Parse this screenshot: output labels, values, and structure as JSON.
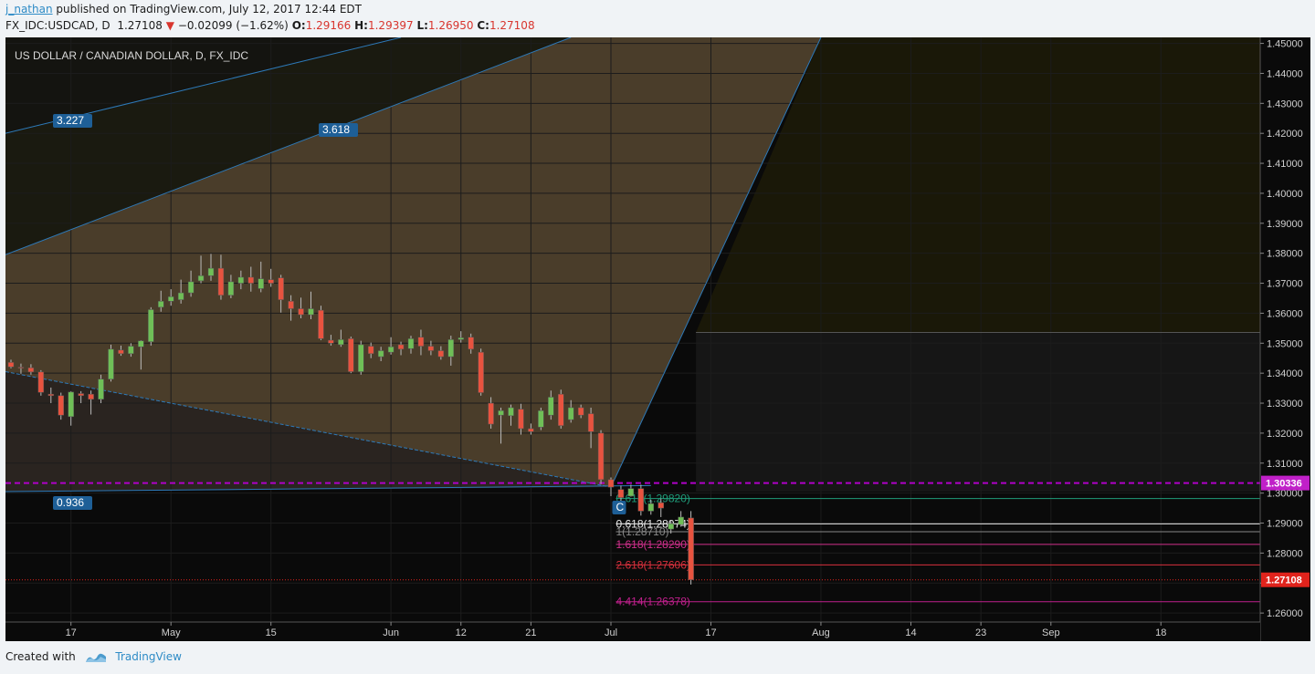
{
  "header": {
    "author": "j_nathan",
    "published_text": "published on TradingView.com, July 12, 2017 12:44 EDT",
    "symbol": "FX_IDC:USDCAD, D",
    "last": "1.27108",
    "change": "−0.02099 (−1.62%)",
    "o_label": "O:",
    "o_value": "1.29166",
    "h_label": "H:",
    "h_value": "1.29397",
    "l_label": "L:",
    "l_value": "1.26950",
    "c_label": "C:",
    "c_value": "1.27108"
  },
  "footer": {
    "created_with": "Created with",
    "brand": "TradingView"
  },
  "colors": {
    "up": "#6fbf57",
    "down": "#e8533f",
    "fib_fill": "#4a3d2a",
    "pitch_line": "#2d79b8",
    "dashed_magenta": "#b000c8",
    "price_tag": "#e0231c"
  },
  "chart_data": {
    "type": "candlestick",
    "title": "US DOLLAR / CANADIAN DOLLAR, D, FX_IDC",
    "ylim": [
      1.257,
      1.452
    ],
    "y_ticks": [
      "1.45000",
      "1.44000",
      "1.43000",
      "1.42000",
      "1.41000",
      "1.40000",
      "1.39000",
      "1.38000",
      "1.37000",
      "1.36000",
      "1.35000",
      "1.34000",
      "1.33000",
      "1.32000",
      "1.31000",
      "1.30000",
      "1.29000",
      "1.28000",
      "1.27000",
      "1.26000"
    ],
    "x_ticks": [
      {
        "i": 6,
        "label": "17"
      },
      {
        "i": 16,
        "label": "May"
      },
      {
        "i": 26,
        "label": "15"
      },
      {
        "i": 38,
        "label": "Jun"
      },
      {
        "i": 45,
        "label": "12"
      },
      {
        "i": 52,
        "label": "21"
      },
      {
        "i": 60,
        "label": "Jul"
      },
      {
        "i": 70,
        "label": "17"
      },
      {
        "i": 81,
        "label": "Aug"
      },
      {
        "i": 90,
        "label": "14"
      },
      {
        "i": 97,
        "label": "23"
      },
      {
        "i": 104,
        "label": "Sep"
      },
      {
        "i": 115,
        "label": "18"
      }
    ],
    "candles": [
      [
        1.3436,
        1.3445,
        1.3416,
        1.3421
      ],
      [
        1.342,
        1.3432,
        1.3398,
        1.3418
      ],
      [
        1.3418,
        1.343,
        1.3395,
        1.3404
      ],
      [
        1.3404,
        1.341,
        1.3325,
        1.3336
      ],
      [
        1.333,
        1.3352,
        1.33,
        1.3325
      ],
      [
        1.3325,
        1.3335,
        1.3245,
        1.326
      ],
      [
        1.3255,
        1.334,
        1.3225,
        1.3337
      ],
      [
        1.3332,
        1.334,
        1.33,
        1.3325
      ],
      [
        1.333,
        1.3342,
        1.3262,
        1.3313
      ],
      [
        1.3313,
        1.3395,
        1.33,
        1.338
      ],
      [
        1.338,
        1.3495,
        1.3372,
        1.348
      ],
      [
        1.3477,
        1.3492,
        1.3458,
        1.3465
      ],
      [
        1.3465,
        1.35,
        1.3455,
        1.349
      ],
      [
        1.3488,
        1.351,
        1.3412,
        1.3508
      ],
      [
        1.3505,
        1.362,
        1.3492,
        1.3612
      ],
      [
        1.362,
        1.3675,
        1.3605,
        1.364
      ],
      [
        1.364,
        1.368,
        1.3625,
        1.3655
      ],
      [
        1.3645,
        1.3712,
        1.3632,
        1.3668
      ],
      [
        1.3668,
        1.3742,
        1.3655,
        1.3705
      ],
      [
        1.3708,
        1.3792,
        1.37,
        1.3725
      ],
      [
        1.3725,
        1.3798,
        1.3708,
        1.375
      ],
      [
        1.375,
        1.3795,
        1.3645,
        1.366
      ],
      [
        1.366,
        1.3728,
        1.365,
        1.3705
      ],
      [
        1.37,
        1.3742,
        1.368,
        1.372
      ],
      [
        1.372,
        1.3755,
        1.3672,
        1.37
      ],
      [
        1.3682,
        1.3772,
        1.367,
        1.3715
      ],
      [
        1.3712,
        1.3748,
        1.3688,
        1.37
      ],
      [
        1.3718,
        1.3728,
        1.3602,
        1.3645
      ],
      [
        1.364,
        1.366,
        1.3575,
        1.3615
      ],
      [
        1.3615,
        1.3652,
        1.3583,
        1.3595
      ],
      [
        1.3595,
        1.3672,
        1.358,
        1.3615
      ],
      [
        1.361,
        1.3625,
        1.351,
        1.3515
      ],
      [
        1.351,
        1.3528,
        1.3492,
        1.35
      ],
      [
        1.3495,
        1.3545,
        1.3488,
        1.3512
      ],
      [
        1.3515,
        1.3522,
        1.34,
        1.3405
      ],
      [
        1.3405,
        1.3508,
        1.3395,
        1.3495
      ],
      [
        1.349,
        1.3502,
        1.345,
        1.3465
      ],
      [
        1.3455,
        1.3488,
        1.344,
        1.3475
      ],
      [
        1.347,
        1.352,
        1.3462,
        1.3488
      ],
      [
        1.3495,
        1.3505,
        1.346,
        1.348
      ],
      [
        1.3482,
        1.3525,
        1.3465,
        1.3515
      ],
      [
        1.352,
        1.3545,
        1.346,
        1.349
      ],
      [
        1.349,
        1.3508,
        1.346,
        1.3475
      ],
      [
        1.3475,
        1.349,
        1.3445,
        1.3455
      ],
      [
        1.3455,
        1.3525,
        1.3425,
        1.3512
      ],
      [
        1.3512,
        1.354,
        1.3502,
        1.3518
      ],
      [
        1.352,
        1.3532,
        1.3465,
        1.348
      ],
      [
        1.347,
        1.3482,
        1.3325,
        1.3335
      ],
      [
        1.33,
        1.332,
        1.3215,
        1.323
      ],
      [
        1.326,
        1.3285,
        1.3165,
        1.3275
      ],
      [
        1.3258,
        1.3295,
        1.3225,
        1.3285
      ],
      [
        1.328,
        1.3298,
        1.3195,
        1.3215
      ],
      [
        1.3215,
        1.3232,
        1.3195,
        1.3205
      ],
      [
        1.322,
        1.3285,
        1.321,
        1.3275
      ],
      [
        1.326,
        1.3342,
        1.3245,
        1.332
      ],
      [
        1.333,
        1.3345,
        1.3215,
        1.3225
      ],
      [
        1.3245,
        1.331,
        1.3235,
        1.3285
      ],
      [
        1.3285,
        1.3295,
        1.325,
        1.326
      ],
      [
        1.3265,
        1.3285,
        1.315,
        1.3205
      ],
      [
        1.32,
        1.321,
        1.303,
        1.3045
      ],
      [
        1.3045,
        1.3052,
        1.299,
        1.302
      ],
      [
        1.3012,
        1.3025,
        1.2968,
        1.2985
      ],
      [
        1.299,
        1.3028,
        1.2988,
        1.3015
      ],
      [
        1.3015,
        1.3028,
        1.2925,
        1.294
      ],
      [
        1.294,
        1.2978,
        1.2928,
        1.2965
      ],
      [
        1.2968,
        1.2982,
        1.292,
        1.295
      ],
      [
        1.288,
        1.2908,
        1.2865,
        1.2898
      ],
      [
        1.2895,
        1.294,
        1.2888,
        1.292
      ],
      [
        1.2917,
        1.294,
        1.2695,
        1.2711
      ]
    ],
    "fib_levels": [
      {
        "label": "0.618(1.28974)",
        "value": 1.28974,
        "color": "#e8e8e8"
      },
      {
        "label": "1(1.28710)",
        "value": 1.2871,
        "color": "#888888"
      },
      {
        "label": "1.618(1.28290)",
        "value": 1.2829,
        "color": "#d0308c"
      },
      {
        "label": "2.618(1.27606)",
        "value": 1.27606,
        "color": "#d8303c"
      },
      {
        "label": "4.414(1.26378)",
        "value": 1.26378,
        "color": "#c0208c"
      }
    ],
    "fib_top_label": "0.618(1.29820)",
    "fib_top_value": 1.2982,
    "pitch_labels": {
      "l1": "3.227",
      "l2": "3.618",
      "l3": "0.936",
      "point": "C"
    },
    "current_price": "1.27108",
    "current_value": 1.27108,
    "resistance_price": "1.30336",
    "resistance_value": 1.30336
  }
}
